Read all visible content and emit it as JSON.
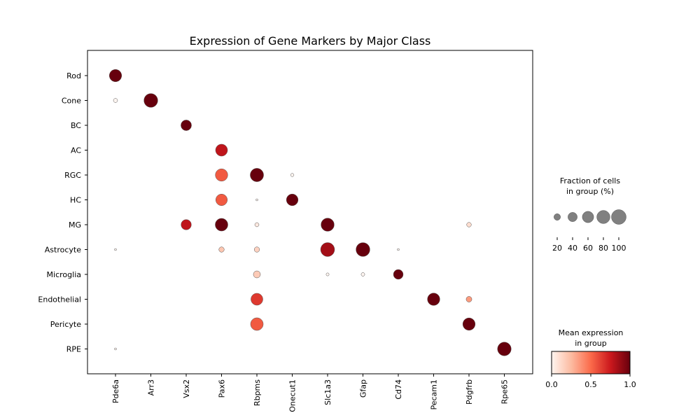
{
  "chart_data": {
    "type": "dotplot",
    "title": "Expression of Gene Markers by Major Class",
    "xlabel": "",
    "ylabel": "",
    "genes": [
      "Pde6a",
      "Arr3",
      "Vsx2",
      "Pax6",
      "Rbpms",
      "Onecut1",
      "Slc1a3",
      "Gfap",
      "Cd74",
      "Pecam1",
      "Pdgfrb",
      "Rpe65"
    ],
    "groups": [
      "Rod",
      "Cone",
      "BC",
      "AC",
      "RGC",
      "HC",
      "MG",
      "Astrocyte",
      "Microglia",
      "Endothelial",
      "Pericyte",
      "RPE"
    ],
    "points": [
      {
        "group": "Rod",
        "gene": "Pde6a",
        "fraction": 70,
        "expression": 1.0
      },
      {
        "group": "Cone",
        "gene": "Pde6a",
        "fraction": 8,
        "expression": 0.0
      },
      {
        "group": "Cone",
        "gene": "Arr3",
        "fraction": 88,
        "expression": 1.0
      },
      {
        "group": "BC",
        "gene": "Vsx2",
        "fraction": 52,
        "expression": 1.0
      },
      {
        "group": "AC",
        "gene": "Pax6",
        "fraction": 66,
        "expression": 0.78
      },
      {
        "group": "RGC",
        "gene": "Pax6",
        "fraction": 71,
        "expression": 0.55
      },
      {
        "group": "RGC",
        "gene": "Rbpms",
        "fraction": 83,
        "expression": 1.0
      },
      {
        "group": "RGC",
        "gene": "Onecut1",
        "fraction": 5,
        "expression": 0.0
      },
      {
        "group": "HC",
        "gene": "Pax6",
        "fraction": 62,
        "expression": 0.55
      },
      {
        "group": "HC",
        "gene": "Rbpms",
        "fraction": 2,
        "expression": 0.0
      },
      {
        "group": "HC",
        "gene": "Onecut1",
        "fraction": 63,
        "expression": 1.0
      },
      {
        "group": "MG",
        "gene": "Vsx2",
        "fraction": 49,
        "expression": 0.78
      },
      {
        "group": "MG",
        "gene": "Pax6",
        "fraction": 74,
        "expression": 1.0
      },
      {
        "group": "MG",
        "gene": "Rbpms",
        "fraction": 8,
        "expression": 0.05
      },
      {
        "group": "MG",
        "gene": "Slc1a3",
        "fraction": 80,
        "expression": 1.0
      },
      {
        "group": "MG",
        "gene": "Pdgfrb",
        "fraction": 10,
        "expression": 0.1
      },
      {
        "group": "Astrocyte",
        "gene": "Pde6a",
        "fraction": 2,
        "expression": 0.0
      },
      {
        "group": "Astrocyte",
        "gene": "Pax6",
        "fraction": 13,
        "expression": 0.2
      },
      {
        "group": "Astrocyte",
        "gene": "Rbpms",
        "fraction": 13,
        "expression": 0.15
      },
      {
        "group": "Astrocyte",
        "gene": "Slc1a3",
        "fraction": 90,
        "expression": 0.85
      },
      {
        "group": "Astrocyte",
        "gene": "Gfap",
        "fraction": 89,
        "expression": 1.0
      },
      {
        "group": "Astrocyte",
        "gene": "Cd74",
        "fraction": 2,
        "expression": 0.0
      },
      {
        "group": "Microglia",
        "gene": "Rbpms",
        "fraction": 23,
        "expression": 0.18
      },
      {
        "group": "Microglia",
        "gene": "Slc1a3",
        "fraction": 4,
        "expression": 0.0
      },
      {
        "group": "Microglia",
        "gene": "Gfap",
        "fraction": 6,
        "expression": 0.0
      },
      {
        "group": "Microglia",
        "gene": "Cd74",
        "fraction": 44,
        "expression": 1.0
      },
      {
        "group": "Endothelial",
        "gene": "Rbpms",
        "fraction": 66,
        "expression": 0.65
      },
      {
        "group": "Endothelial",
        "gene": "Pecam1",
        "fraction": 71,
        "expression": 1.0
      },
      {
        "group": "Endothelial",
        "gene": "Pdgfrb",
        "fraction": 15,
        "expression": 0.35
      },
      {
        "group": "Pericyte",
        "gene": "Rbpms",
        "fraction": 74,
        "expression": 0.55
      },
      {
        "group": "Pericyte",
        "gene": "Pdgfrb",
        "fraction": 71,
        "expression": 1.0
      },
      {
        "group": "RPE",
        "gene": "Pde6a",
        "fraction": 2,
        "expression": 0.0
      },
      {
        "group": "RPE",
        "gene": "Rpe65",
        "fraction": 86,
        "expression": 1.0
      }
    ],
    "size_legend": {
      "title": "Fraction of cells\nin group (%)",
      "values": [
        20,
        40,
        60,
        80,
        100
      ]
    },
    "color_legend": {
      "title": "Mean expression\nin group",
      "colormap": "Reds",
      "ticks": [
        "0.0",
        "0.5",
        "1.0"
      ],
      "range": [
        0,
        1
      ]
    }
  }
}
